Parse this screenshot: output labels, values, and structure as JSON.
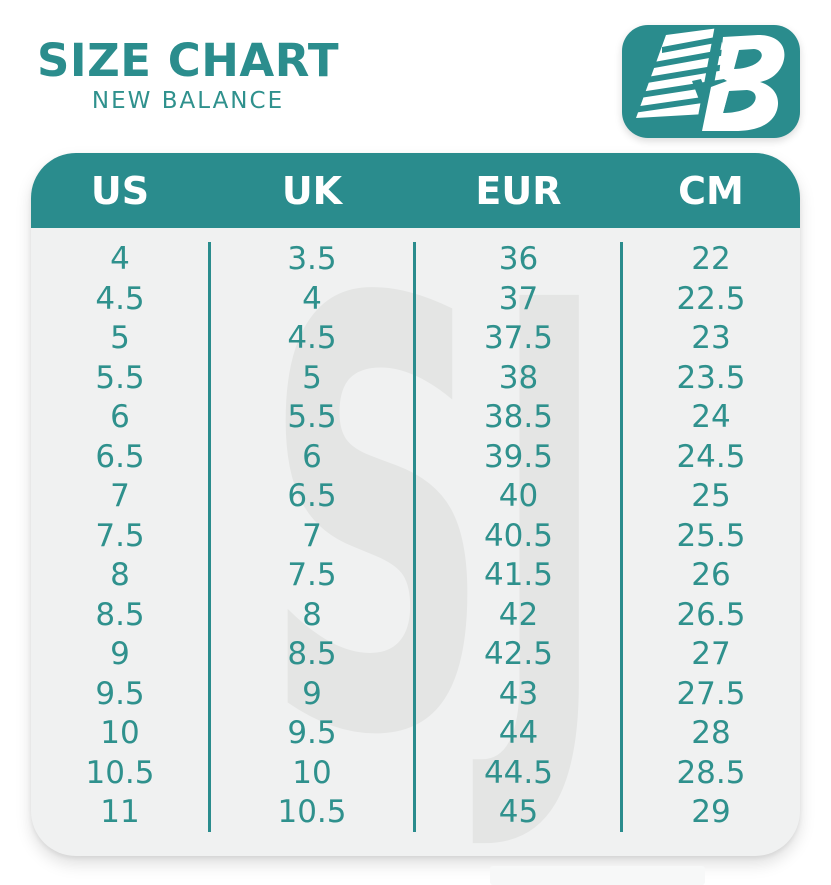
{
  "header": {
    "title": "SIZE CHART",
    "subtitle": "NEW BALANCE",
    "logo": {
      "brand": "New Balance",
      "monogram": "NB"
    }
  },
  "watermark": {
    "text": "SJ"
  },
  "colors": {
    "teal_primary": "#2a8c8d",
    "teal_text": "#2f918d",
    "table_background": "#f0f1f1",
    "watermark_gray": "#e4e5e4",
    "header_text": "#ffffff",
    "page_background": "#ffffff"
  },
  "chart_data": {
    "type": "table",
    "title": "SIZE CHART",
    "subtitle": "NEW BALANCE",
    "columns": [
      "US",
      "UK",
      "EUR",
      "CM"
    ],
    "rows": [
      [
        "4",
        "3.5",
        "36",
        "22"
      ],
      [
        "4.5",
        "4",
        "37",
        "22.5"
      ],
      [
        "5",
        "4.5",
        "37.5",
        "23"
      ],
      [
        "5.5",
        "5",
        "38",
        "23.5"
      ],
      [
        "6",
        "5.5",
        "38.5",
        "24"
      ],
      [
        "6.5",
        "6",
        "39.5",
        "24.5"
      ],
      [
        "7",
        "6.5",
        "40",
        "25"
      ],
      [
        "7.5",
        "7",
        "40.5",
        "25.5"
      ],
      [
        "8",
        "7.5",
        "41.5",
        "26"
      ],
      [
        "8.5",
        "8",
        "42",
        "26.5"
      ],
      [
        "9",
        "8.5",
        "42.5",
        "27"
      ],
      [
        "9.5",
        "9",
        "43",
        "27.5"
      ],
      [
        "10",
        "9.5",
        "44",
        "28"
      ],
      [
        "10.5",
        "10",
        "44.5",
        "28.5"
      ],
      [
        "11",
        "10.5",
        "45",
        "29"
      ]
    ],
    "layout": {
      "grid": false,
      "column_dividers": true,
      "header_fill": "#2a8c8d"
    }
  }
}
